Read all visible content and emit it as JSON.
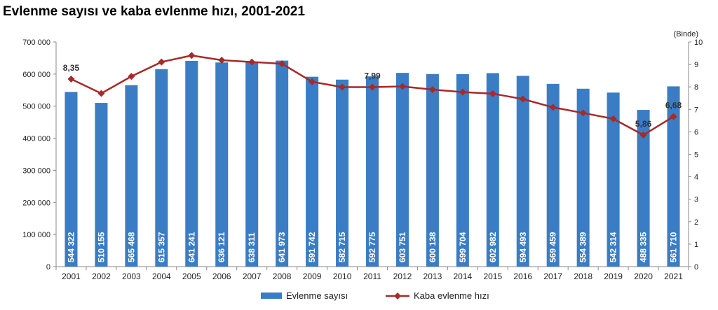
{
  "title": "Evlenme sayısı ve kaba evlenme hızı, 2001-2021",
  "chart_data": {
    "type": "bar",
    "categories": [
      "2001",
      "2002",
      "2003",
      "2004",
      "2005",
      "2006",
      "2007",
      "2008",
      "2009",
      "2010",
      "2011",
      "2012",
      "2013",
      "2014",
      "2015",
      "2016",
      "2017",
      "2018",
      "2019",
      "2020",
      "2021"
    ],
    "series": [
      {
        "name": "Evlenme sayısı",
        "type": "bar",
        "axis": "left",
        "color": "#3b7dc4",
        "values": [
          544322,
          510155,
          565468,
          615357,
          641241,
          636121,
          638311,
          641973,
          591742,
          582715,
          592775,
          603751,
          600138,
          599704,
          602982,
          594493,
          569459,
          554389,
          542314,
          488335,
          561710
        ],
        "labels": [
          "544 322",
          "510 155",
          "565 468",
          "615 357",
          "641 241",
          "636 121",
          "638 311",
          "641 973",
          "591 742",
          "582 715",
          "592 775",
          "603 751",
          "600 138",
          "599 704",
          "602 982",
          "594 493",
          "569 459",
          "554 389",
          "542 314",
          "488 335",
          "561 710"
        ]
      },
      {
        "name": "Kaba evlenme hızı",
        "type": "line",
        "axis": "right",
        "color": "#a52a2a",
        "values": [
          8.35,
          7.71,
          8.47,
          9.11,
          9.4,
          9.19,
          9.11,
          9.03,
          8.23,
          7.99,
          7.99,
          8.02,
          7.88,
          7.77,
          7.7,
          7.46,
          7.09,
          6.84,
          6.58,
          5.86,
          6.68
        ]
      }
    ],
    "y_left": {
      "ylim": [
        0,
        700000
      ],
      "ticks": [
        "0",
        "100 000",
        "200 000",
        "300 000",
        "400 000",
        "500 000",
        "600 000",
        "700 000"
      ]
    },
    "y_right": {
      "ylim": [
        0,
        10
      ],
      "ticks": [
        "0",
        "1",
        "2",
        "3",
        "4",
        "5",
        "6",
        "7",
        "8",
        "9",
        "10"
      ],
      "label": "(Binde)"
    },
    "annotations": [
      {
        "index": 0,
        "text": "8,35"
      },
      {
        "index": 10,
        "text": "7,99"
      },
      {
        "index": 19,
        "text": "5,86"
      },
      {
        "index": 20,
        "text": "6,68"
      }
    ],
    "legend": {
      "position": "bottom",
      "items": [
        "Evlenme sayısı",
        "Kaba evlenme hızı"
      ]
    },
    "grid": false
  }
}
